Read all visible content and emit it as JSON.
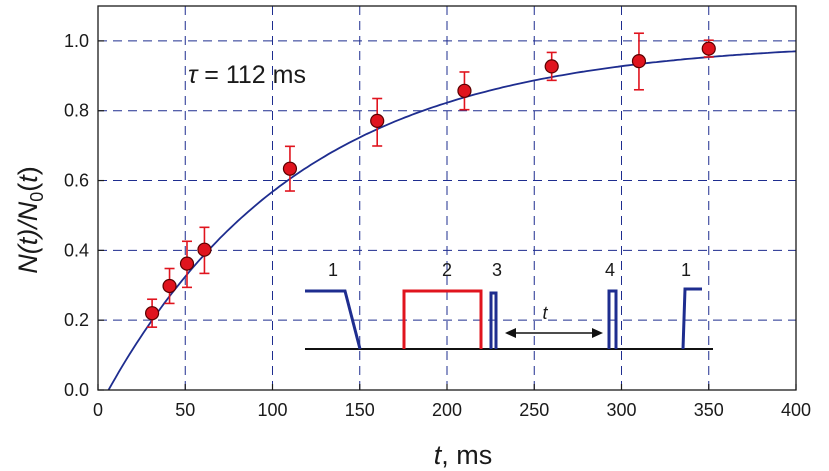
{
  "chart_data": {
    "type": "scatter",
    "title": "",
    "xlabel": {
      "var": "t",
      "unit": ", ms"
    },
    "ylabel": {
      "parts": [
        "N(",
        "t",
        ")/",
        "N",
        "0",
        "(",
        "t",
        ")"
      ]
    },
    "xlim": [
      0,
      400
    ],
    "ylim": [
      0,
      1.1
    ],
    "xticks": [
      0,
      50,
      100,
      150,
      200,
      250,
      300,
      350,
      400
    ],
    "yticks": [
      0.0,
      0.2,
      0.4,
      0.6,
      0.8,
      1.0
    ],
    "ytick_labels": [
      "0.0",
      "0.2",
      "0.4",
      "0.6",
      "0.8",
      "1.0"
    ],
    "grid": true,
    "annotation": {
      "symbol": "τ",
      "text": " = 112 ms"
    },
    "series": [
      {
        "kind": "points",
        "color": "#e0141e",
        "errorbar_color": "#e0141e",
        "x": [
          31,
          41,
          51,
          61,
          110,
          160,
          210,
          260,
          310,
          350
        ],
        "y": [
          0.22,
          0.298,
          0.362,
          0.402,
          0.634,
          0.771,
          0.857,
          0.927,
          0.942,
          0.978
        ],
        "err_lo": [
          0.04,
          0.05,
          0.068,
          0.068,
          0.064,
          0.072,
          0.054,
          0.04,
          0.082,
          0.024
        ],
        "err_hi": [
          0.04,
          0.05,
          0.064,
          0.064,
          0.064,
          0.064,
          0.054,
          0.04,
          0.08,
          0.024
        ]
      },
      {
        "kind": "fit",
        "color": "#1e2d8f",
        "model": "1 - exp(-(t - t0)/tau)",
        "tau": 112,
        "t0": 6
      }
    ],
    "inset": {
      "pulse_labels": [
        "1",
        "2",
        "3",
        "4",
        "1"
      ],
      "interval_label": "t",
      "colors": {
        "blue": "#1e2d8f",
        "red": "#e0141e",
        "baseline": "#111111"
      }
    }
  }
}
